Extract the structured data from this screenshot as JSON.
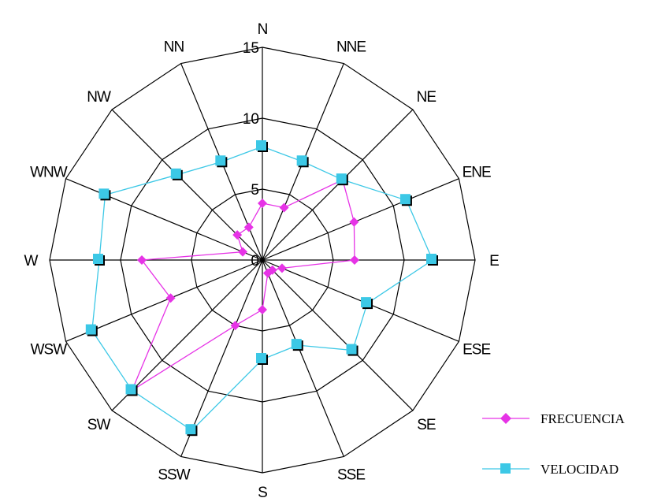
{
  "chart_data": {
    "type": "radar",
    "directions": [
      "N",
      "NNE",
      "NE",
      "ENE",
      "E",
      "ESE",
      "SE",
      "SSE",
      "S",
      "SSW",
      "SW",
      "WSW",
      "W",
      "WNW",
      "NW",
      "NN"
    ],
    "ticks": [
      0,
      5,
      10,
      15
    ],
    "rmax": 15,
    "grid": true,
    "legend_position": "bottom-right",
    "series": [
      {
        "name": "FRECUENCIA",
        "color": "#e633e6",
        "marker": "diamond",
        "values": [
          4,
          4,
          8,
          7,
          6.5,
          1.5,
          1,
          1,
          3.5,
          5,
          13,
          7,
          8.5,
          1.5,
          2.5,
          2.5
        ]
      },
      {
        "name": "VELOCIDAD",
        "color": "#3cc8e6",
        "marker": "square",
        "values": [
          8,
          7.5,
          8,
          11,
          12,
          8,
          9,
          6.5,
          7,
          13,
          13,
          13,
          11.5,
          12,
          8.5,
          7.5
        ]
      }
    ]
  }
}
